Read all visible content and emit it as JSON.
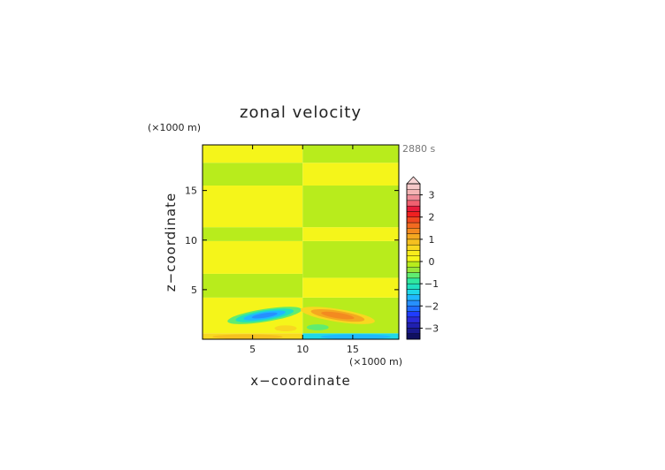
{
  "chart_data": {
    "type": "heatmap",
    "title": "zonal velocity",
    "xlabel": "x−coordinate",
    "ylabel": "z−coordinate",
    "x_unit": "(×1000 m)",
    "y_unit": "(×1000 m)",
    "time_label": "2880 s",
    "xlim": [
      0,
      19.6
    ],
    "ylim": [
      0,
      19.6
    ],
    "x_ticks": [
      5,
      10,
      15
    ],
    "y_ticks": [
      5,
      10,
      15
    ],
    "colorbar": {
      "levels": [
        -3.5,
        -3.25,
        -3,
        -2.75,
        -2.5,
        -2.25,
        -2,
        -1.75,
        -1.5,
        -1.25,
        -1,
        -0.75,
        -0.5,
        -0.25,
        0,
        0.25,
        0.5,
        0.75,
        1,
        1.25,
        1.5,
        1.75,
        2,
        2.25,
        2.5,
        2.75,
        3,
        3.25,
        3.5
      ],
      "tick_values": [
        -3,
        -2,
        -1,
        0,
        1,
        2,
        3
      ],
      "tick_labels": [
        "−3",
        "−2",
        "−1",
        "0",
        "1",
        "2",
        "3"
      ],
      "extend": "max"
    },
    "regions": [
      {
        "name": "bands_left",
        "x_range": [
          0,
          10
        ],
        "bands": [
          {
            "z": [
              0,
              0.6
            ],
            "value": 0.6
          },
          {
            "z": [
              0.6,
              4.2
            ],
            "value": 0.15
          },
          {
            "z": [
              4.2,
              6.6
            ],
            "value": -0.1
          },
          {
            "z": [
              6.6,
              9.9
            ],
            "value": 0.15
          },
          {
            "z": [
              9.9,
              11.3
            ],
            "value": -0.1
          },
          {
            "z": [
              11.3,
              15.5
            ],
            "value": 0.15
          },
          {
            "z": [
              15.5,
              17.8
            ],
            "value": -0.1
          },
          {
            "z": [
              17.8,
              19.6
            ],
            "value": 0.15
          }
        ]
      },
      {
        "name": "bands_right",
        "x_range": [
          10,
          19.6
        ],
        "bands": [
          {
            "z": [
              0,
              0.6
            ],
            "value": -1.4
          },
          {
            "z": [
              0.6,
              4.2
            ],
            "value": -0.1
          },
          {
            "z": [
              4.2,
              6.2
            ],
            "value": 0.15
          },
          {
            "z": [
              6.2,
              9.9
            ],
            "value": -0.1
          },
          {
            "z": [
              9.9,
              11.3
            ],
            "value": 0.15
          },
          {
            "z": [
              11.3,
              15.5
            ],
            "value": -0.1
          },
          {
            "z": [
              15.5,
              17.8
            ],
            "value": 0.15
          },
          {
            "z": [
              17.8,
              19.6
            ],
            "value": -0.1
          }
        ]
      }
    ],
    "features": [
      {
        "name": "negative_lobe_left",
        "center": [
          6.2,
          2.4
        ],
        "extent": [
          7.5,
          1.3
        ],
        "angle_deg": 9,
        "values": [
          -0.6,
          -1.1,
          -1.6,
          -2.0
        ]
      },
      {
        "name": "positive_lobe_right",
        "center": [
          13.5,
          2.4
        ],
        "extent": [
          7.5,
          1.3
        ],
        "angle_deg": -9,
        "values": [
          0.6,
          1.0,
          1.3
        ]
      },
      {
        "name": "positive_blob_left_low",
        "center": [
          8.3,
          1.1
        ],
        "extent": [
          2.2,
          0.6
        ],
        "angle_deg": 0,
        "values": [
          0.6
        ]
      },
      {
        "name": "negative_blob_right_low",
        "center": [
          11.5,
          1.2
        ],
        "extent": [
          2.2,
          0.6
        ],
        "angle_deg": 0,
        "values": [
          -0.7
        ]
      },
      {
        "name": "positive_strip_bottom_left",
        "center": [
          4.5,
          0.25
        ],
        "extent": [
          7.0,
          0.5
        ],
        "angle_deg": 0,
        "values": [
          0.9
        ]
      },
      {
        "name": "negative_strip_bottom_right",
        "center": [
          15.3,
          0.25
        ],
        "extent": [
          7.0,
          0.5
        ],
        "angle_deg": 0,
        "values": [
          -1.6
        ]
      }
    ]
  }
}
